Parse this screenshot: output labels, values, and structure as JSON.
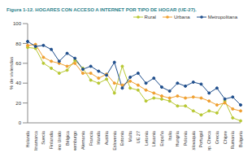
{
  "chart_data": {
    "type": "line",
    "title": "Figura 1-12. HOGARES CON ACCESO A INTERNET POR TIPO DE HOGAR (UE-27).",
    "y_label": "% de viviendas",
    "categories": [
      "Holanda",
      "Dinamarca",
      "Suecia",
      "Finlandia",
      "Reino Unido",
      "Bélgica",
      "Luxemburgo",
      "Alemania",
      "Francia",
      "Irlanda",
      "Austria",
      "Eslovenia",
      "Estonia",
      "Malta",
      "UE 27",
      "Letonia",
      "Lituania",
      "España",
      "Italia",
      "Hungría",
      "Polonia",
      "Eslovaquia",
      "Portugal",
      "Rep. Checa",
      "Grecia",
      "Chipre",
      "Rumanía",
      "Bulgaria"
    ],
    "series": [
      {
        "name": "Rural",
        "color": "#b8c832",
        "values": [
          76,
          75,
          60,
          55,
          50,
          53,
          63,
          55,
          43,
          40,
          44,
          30,
          57,
          35,
          33,
          22,
          25,
          24,
          22,
          17,
          17,
          12,
          8,
          12,
          10,
          22,
          5,
          2
        ]
      },
      {
        "name": "Urbana",
        "color": "#f0a030",
        "values": [
          78,
          79,
          66,
          62,
          60,
          57,
          60,
          50,
          50,
          45,
          49,
          40,
          38,
          42,
          38,
          33,
          30,
          27,
          25,
          27,
          25,
          26,
          25,
          22,
          18,
          20,
          14,
          12
        ]
      },
      {
        "name": "Metropolitana",
        "color": "#1f4e8c",
        "values": [
          82,
          77,
          78,
          74,
          62,
          70,
          65,
          54,
          57,
          52,
          48,
          61,
          35,
          46,
          50,
          40,
          45,
          36,
          32,
          40,
          37,
          41,
          39,
          30,
          35,
          24,
          26,
          18
        ]
      }
    ],
    "ylim": [
      0,
      100
    ],
    "yticks": [
      0,
      20,
      40,
      60,
      80,
      100
    ],
    "grid": false,
    "legend": "top",
    "marker": "circle"
  }
}
